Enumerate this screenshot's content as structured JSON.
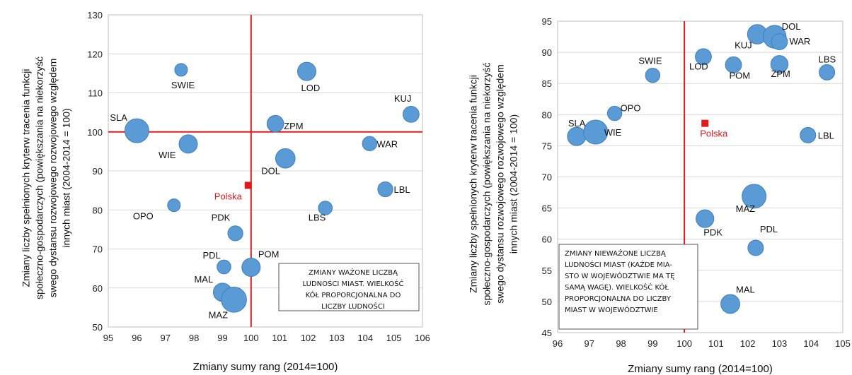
{
  "colors": {
    "bubble": "#5b9bd5",
    "bubble_stroke": "#3f7fbf",
    "reference": "#e31a1c",
    "grid": "#d9d9d9"
  },
  "chart_data": [
    {
      "type": "scatter",
      "xlabel": "Zmiany sumy rang (2014=100)",
      "ylabel_lines": [
        "Zmiany liczby spełnionych kryterw tracenia funkcji",
        "społeczno-gospodarczych (powiększania na niekorzyść",
        "swego dystansu rozwojowego rozwojowego względem",
        "innych miast (2004-2014 = 100)"
      ],
      "xlim": [
        95,
        106
      ],
      "ylim": [
        50,
        130
      ],
      "xticks": [
        "95",
        "96",
        "97",
        "98",
        "99",
        "100",
        "101",
        "102",
        "103",
        "104",
        "105",
        "106"
      ],
      "yticks": [
        "50",
        "60",
        "70",
        "80",
        "90",
        "100",
        "110",
        "120",
        "130"
      ],
      "ref_x": 100,
      "ref_y": 100,
      "grid": "horizontal",
      "note_lines": [
        "ZMIANY WAŻONE LICZBĄ",
        "LUDNOŚCI MIAST. WIELKOŚĆ",
        "KÓŁ PROPORCJONALNA DO",
        "LICZBY LUDNOŚCI"
      ],
      "reference_point": {
        "label": "Polska",
        "x": 99.9,
        "y": 86.3
      },
      "points": [
        {
          "label": "SLA",
          "x": 96.0,
          "y": 100.3,
          "size": 3
        },
        {
          "label": "SWIE",
          "x": 97.55,
          "y": 115.9,
          "size": 1
        },
        {
          "label": "WIE",
          "x": 97.8,
          "y": 96.9,
          "size": 2
        },
        {
          "label": "OPO",
          "x": 97.3,
          "y": 81.2,
          "size": 1
        },
        {
          "label": "PDK",
          "x": 99.45,
          "y": 74.0,
          "size": 1.4
        },
        {
          "label": "PDL",
          "x": 99.05,
          "y": 65.4,
          "size": 1.2
        },
        {
          "label": "MAL",
          "x": 99.0,
          "y": 58.9,
          "size": 2
        },
        {
          "label": "MAZ",
          "x": 99.4,
          "y": 57.0,
          "size": 3.2
        },
        {
          "label": "POM",
          "x": 100.0,
          "y": 65.3,
          "size": 2
        },
        {
          "label": "ZPM",
          "x": 100.85,
          "y": 102.1,
          "size": 1.7
        },
        {
          "label": "DOL",
          "x": 101.2,
          "y": 93.2,
          "size": 2.2
        },
        {
          "label": "LOD",
          "x": 101.95,
          "y": 115.5,
          "size": 2
        },
        {
          "label": "LBS",
          "x": 102.6,
          "y": 80.5,
          "size": 1.2
        },
        {
          "label": "WAR",
          "x": 104.15,
          "y": 97.0,
          "size": 1.3
        },
        {
          "label": "LBL",
          "x": 104.7,
          "y": 85.3,
          "size": 1.4
        },
        {
          "label": "KUJ",
          "x": 105.6,
          "y": 104.5,
          "size": 1.6
        }
      ]
    },
    {
      "type": "scatter",
      "xlabel": "Zmiany sumy rang (2014=100)",
      "ylabel_lines": [
        "Zmiany liczby spełnionych kryterw tracenia funkcji",
        "społeczno-gospodarczych (powiększania na niekorzyść",
        "swego dystansu rozwojowego rozwojowego względem",
        "innych miast (2004-2014 = 100)"
      ],
      "xlim": [
        96,
        105
      ],
      "ylim": [
        45,
        95
      ],
      "xticks": [
        "96",
        "97",
        "98",
        "99",
        "100",
        "101",
        "102",
        "103",
        "104",
        "105"
      ],
      "yticks": [
        "45",
        "50",
        "55",
        "60",
        "65",
        "70",
        "75",
        "80",
        "85",
        "90",
        "95"
      ],
      "ref_x": 100,
      "grid": "horizontal",
      "note_lines": [
        "ZMIANY NIEWAŻONE LICZBĄ",
        "LUDNOŚCI MIAST (KAŻDE MIA-",
        "STO W WOJEWÓDZTWIE MA TĘ",
        "SAMĄ WAGĘ). WIELKOŚĆ KÓŁ",
        "PROPORCJONALNA DO LICZBY",
        "MIAST W WOJEWÓDZTWIE"
      ],
      "reference_point": {
        "label": "Polska",
        "x": 100.65,
        "y": 78.6
      },
      "points": [
        {
          "label": "SLA",
          "x": 96.6,
          "y": 76.5,
          "size": 2
        },
        {
          "label": "WIE",
          "x": 97.2,
          "y": 77.2,
          "size": 3
        },
        {
          "label": "OPO",
          "x": 97.8,
          "y": 80.2,
          "size": 1.3
        },
        {
          "label": "SWIE",
          "x": 99.0,
          "y": 86.3,
          "size": 1.3
        },
        {
          "label": "LOD",
          "x": 100.6,
          "y": 89.3,
          "size": 1.6
        },
        {
          "label": "POM",
          "x": 101.55,
          "y": 88.0,
          "size": 1.6
        },
        {
          "label": "KUJ",
          "x": 102.3,
          "y": 92.9,
          "size": 2.2
        },
        {
          "label": "DOL",
          "x": 102.85,
          "y": 92.5,
          "size": 2.8
        },
        {
          "label": "WAR",
          "x": 103.0,
          "y": 91.7,
          "size": 1.6
        },
        {
          "label": "ZPM",
          "x": 103.0,
          "y": 88.1,
          "size": 1.8
        },
        {
          "label": "LBS",
          "x": 104.5,
          "y": 86.8,
          "size": 1.5
        },
        {
          "label": "LBL",
          "x": 103.9,
          "y": 76.7,
          "size": 1.5
        },
        {
          "label": "MAZ",
          "x": 102.2,
          "y": 66.9,
          "size": 3
        },
        {
          "label": "PDK",
          "x": 100.65,
          "y": 63.3,
          "size": 1.9
        },
        {
          "label": "PDL",
          "x": 102.25,
          "y": 58.6,
          "size": 1.5
        },
        {
          "label": "MAL",
          "x": 101.45,
          "y": 49.6,
          "size": 2.1
        }
      ]
    }
  ]
}
